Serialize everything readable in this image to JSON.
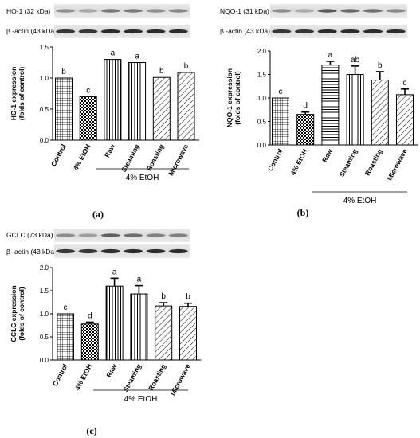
{
  "chart_data": [
    {
      "type": "bar",
      "panel": "(a)",
      "blots": [
        "HO-1 (32 kDa)",
        "β -actin (43 kDa)"
      ],
      "categories": [
        "Control",
        "4% EtOH",
        "Raw",
        "Steaming",
        "Roasting",
        "Microwave"
      ],
      "values": [
        1.0,
        0.7,
        1.3,
        1.25,
        1.01,
        1.09
      ],
      "errors": [
        0,
        0,
        0,
        0,
        0,
        0
      ],
      "significance": [
        "b",
        "c",
        "a",
        "a",
        "b",
        "b"
      ],
      "ylabel": [
        "HO-1 expression",
        "(folds of control)"
      ],
      "ylim": [
        0,
        1.5
      ],
      "yticks": [
        "0.0",
        "0.5",
        "1.0",
        "1.5"
      ],
      "group_label": "4% EtOH",
      "patterns": [
        "grid",
        "checker",
        "vstripe",
        "vstripe",
        "diag",
        "diag"
      ]
    },
    {
      "type": "bar",
      "panel": "(b)",
      "blots": [
        "NQO-1 (31 kDa)",
        "β -actin (43 kDa)"
      ],
      "categories": [
        "Control",
        "4% EtOH",
        "Raw",
        "Steaming",
        "Roasting",
        "Microwave"
      ],
      "values": [
        1.0,
        0.65,
        1.7,
        1.5,
        1.38,
        1.07
      ],
      "errors": [
        0,
        0.05,
        0.08,
        0.18,
        0.18,
        0.12
      ],
      "significance": [
        "c",
        "d",
        "a",
        "ab",
        "b",
        "c"
      ],
      "ylabel": [
        "NQO-1 expression",
        "(folds of control)"
      ],
      "ylim": [
        0,
        2.0
      ],
      "yticks": [
        "0.0",
        "0.5",
        "1.0",
        "1.5",
        "2.0"
      ],
      "group_label": "4% EtOH",
      "patterns": [
        "grid",
        "checker",
        "hstripe",
        "vstripe",
        "diag",
        "diag"
      ]
    },
    {
      "type": "bar",
      "panel": "(c)",
      "blots": [
        "GCLC (73 kDa)",
        "β -actin (43 kDa)"
      ],
      "categories": [
        "Control",
        "4% EtOH",
        "Raw",
        "Steaming",
        "Roasting",
        "Microwave"
      ],
      "values": [
        1.0,
        0.78,
        1.6,
        1.43,
        1.17,
        1.16
      ],
      "errors": [
        0,
        0.04,
        0.17,
        0.18,
        0.07,
        0.07
      ],
      "significance": [
        "c",
        "d",
        "a",
        "a",
        "b",
        "b"
      ],
      "ylabel": [
        "GCLC expression",
        "(folds of control)"
      ],
      "ylim": [
        0,
        2.0
      ],
      "yticks": [
        "0.0",
        "0.5",
        "1.0",
        "1.5",
        "2.0"
      ],
      "group_label": "4% EtOH",
      "patterns": [
        "grid",
        "checker",
        "vstripe",
        "vstripe",
        "diag",
        "diag"
      ]
    }
  ]
}
